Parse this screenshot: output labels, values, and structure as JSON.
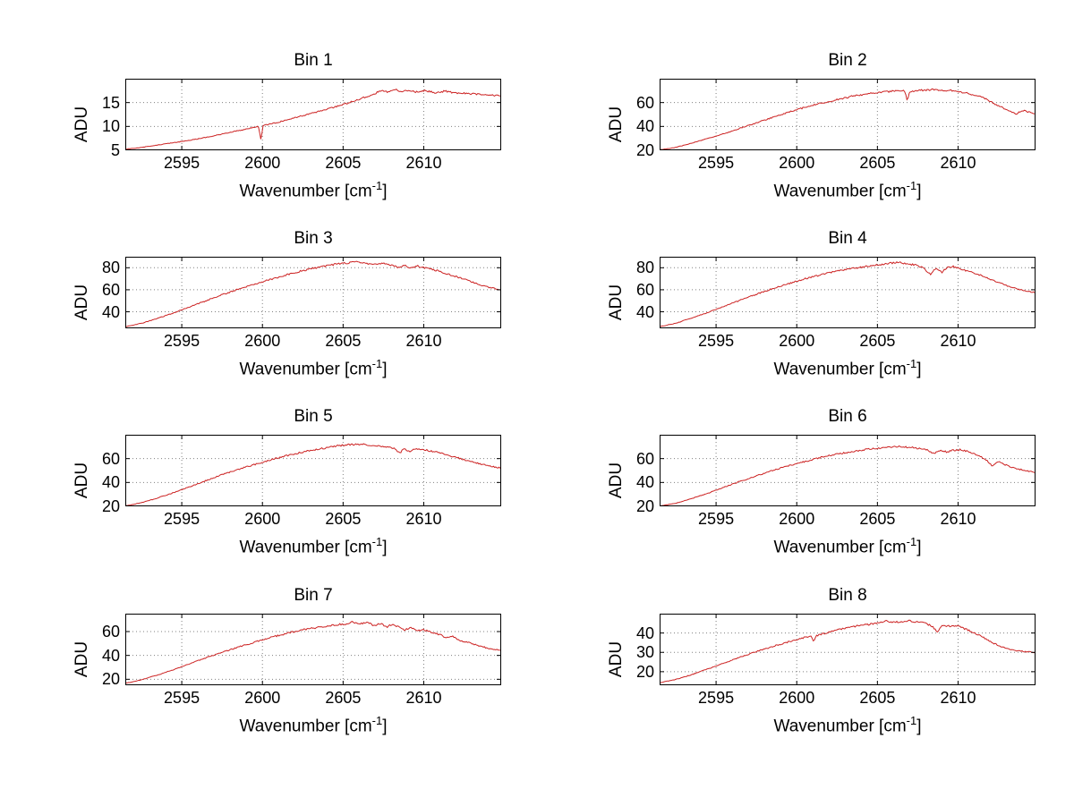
{
  "figure": {
    "background": "#ffffff",
    "line_color": "#cc2222",
    "grid_color": "#808080",
    "axis_color": "#000000",
    "ylabel": "ADU",
    "xlabel": {
      "prefix": "Wavenumber [cm",
      "sup": "-1",
      "suffix": "]"
    }
  },
  "chart_data": [
    {
      "type": "line",
      "title": "Bin 1",
      "xlabel": "Wavenumber [cm^-1]",
      "ylabel": "ADU",
      "xlim": [
        2591.5,
        2614.8
      ],
      "xticks": [
        2595,
        2600,
        2605,
        2610
      ],
      "ylim": [
        5,
        20
      ],
      "yticks": [
        5,
        10,
        15
      ],
      "points": [
        [
          2591.5,
          5.2
        ],
        [
          2592.5,
          5.6
        ],
        [
          2593.5,
          6.1
        ],
        [
          2594.5,
          6.6
        ],
        [
          2595.5,
          7.1
        ],
        [
          2596.5,
          7.7
        ],
        [
          2597.5,
          8.4
        ],
        [
          2598.5,
          9.1
        ],
        [
          2599.3,
          9.7
        ],
        [
          2599.75,
          10.0
        ],
        [
          2599.9,
          7.3
        ],
        [
          2600.05,
          10.2
        ],
        [
          2601,
          10.9
        ],
        [
          2602,
          11.8
        ],
        [
          2603,
          12.7
        ],
        [
          2604,
          13.6
        ],
        [
          2605,
          14.6
        ],
        [
          2606,
          15.7
        ],
        [
          2606.8,
          16.6
        ],
        [
          2607.4,
          17.6
        ],
        [
          2607.8,
          17.2
        ],
        [
          2608.2,
          17.9
        ],
        [
          2608.6,
          17.3
        ],
        [
          2609,
          17.6
        ],
        [
          2609.5,
          17.2
        ],
        [
          2610,
          17.5
        ],
        [
          2610.7,
          17.1
        ],
        [
          2611.3,
          17.4
        ],
        [
          2612,
          17.0
        ],
        [
          2612.7,
          16.9
        ],
        [
          2613.4,
          16.7
        ],
        [
          2614.8,
          16.4
        ]
      ]
    },
    {
      "type": "line",
      "title": "Bin 2",
      "xlabel": "Wavenumber [cm^-1]",
      "ylabel": "ADU",
      "xlim": [
        2591.5,
        2614.8
      ],
      "xticks": [
        2595,
        2600,
        2605,
        2610
      ],
      "ylim": [
        20,
        80
      ],
      "yticks": [
        20,
        40,
        60
      ],
      "points": [
        [
          2591.5,
          20.3
        ],
        [
          2592.5,
          22.5
        ],
        [
          2593.5,
          26
        ],
        [
          2594.5,
          30
        ],
        [
          2595.5,
          34
        ],
        [
          2596.5,
          38.5
        ],
        [
          2597.5,
          43
        ],
        [
          2598.5,
          47.5
        ],
        [
          2599.5,
          52
        ],
        [
          2600.5,
          56
        ],
        [
          2601.5,
          59.5
        ],
        [
          2602.5,
          62.5
        ],
        [
          2603.5,
          65.5
        ],
        [
          2604.5,
          67.5
        ],
        [
          2605.5,
          69
        ],
        [
          2606.3,
          70
        ],
        [
          2606.7,
          69.5
        ],
        [
          2606.85,
          61.5
        ],
        [
          2607,
          69.5
        ],
        [
          2607.5,
          70
        ],
        [
          2608,
          70.5
        ],
        [
          2608.5,
          71
        ],
        [
          2609,
          70
        ],
        [
          2609.5,
          70.5
        ],
        [
          2610,
          69
        ],
        [
          2610.5,
          68
        ],
        [
          2611,
          66.5
        ],
        [
          2611.5,
          64.5
        ],
        [
          2612,
          61
        ],
        [
          2612.4,
          58
        ],
        [
          2612.8,
          55.5
        ],
        [
          2613.2,
          53
        ],
        [
          2613.6,
          50.5
        ],
        [
          2614,
          53.5
        ],
        [
          2614.4,
          52
        ],
        [
          2614.8,
          50
        ]
      ]
    },
    {
      "type": "line",
      "title": "Bin 3",
      "xlabel": "Wavenumber [cm^-1]",
      "ylabel": "ADU",
      "xlim": [
        2591.5,
        2614.8
      ],
      "xticks": [
        2595,
        2600,
        2605,
        2610
      ],
      "ylim": [
        25,
        90
      ],
      "yticks": [
        40,
        60,
        80
      ],
      "points": [
        [
          2591.5,
          26.5
        ],
        [
          2592.5,
          29.5
        ],
        [
          2593.5,
          34
        ],
        [
          2594.5,
          39
        ],
        [
          2595.5,
          44.5
        ],
        [
          2596.5,
          50
        ],
        [
          2597.5,
          55.5
        ],
        [
          2598.5,
          60.5
        ],
        [
          2599.5,
          65
        ],
        [
          2600.5,
          69.5
        ],
        [
          2601.5,
          73.5
        ],
        [
          2602.5,
          77.5
        ],
        [
          2603.5,
          80.5
        ],
        [
          2604.5,
          83
        ],
        [
          2605.3,
          84.5
        ],
        [
          2605.8,
          85.5
        ],
        [
          2606.3,
          84
        ],
        [
          2607,
          83.5
        ],
        [
          2607.5,
          84
        ],
        [
          2608,
          82.5
        ],
        [
          2608.4,
          80
        ],
        [
          2608.8,
          82.5
        ],
        [
          2609.2,
          79.5
        ],
        [
          2609.6,
          81.5
        ],
        [
          2610,
          80
        ],
        [
          2610.5,
          79
        ],
        [
          2611,
          76.5
        ],
        [
          2611.8,
          73
        ],
        [
          2612.6,
          69
        ],
        [
          2613.4,
          65
        ],
        [
          2614.1,
          62
        ],
        [
          2614.8,
          60
        ]
      ]
    },
    {
      "type": "line",
      "title": "Bin 4",
      "xlabel": "Wavenumber [cm^-1]",
      "ylabel": "ADU",
      "xlim": [
        2591.5,
        2614.8
      ],
      "xticks": [
        2595,
        2600,
        2605,
        2610
      ],
      "ylim": [
        25,
        90
      ],
      "yticks": [
        40,
        60,
        80
      ],
      "points": [
        [
          2591.5,
          26.5
        ],
        [
          2592.5,
          29.5
        ],
        [
          2593.5,
          34.5
        ],
        [
          2594.5,
          39.5
        ],
        [
          2595.5,
          45
        ],
        [
          2596.5,
          50.5
        ],
        [
          2597.5,
          56
        ],
        [
          2598.5,
          61
        ],
        [
          2599.5,
          65.5
        ],
        [
          2600.5,
          70
        ],
        [
          2601.5,
          73.5
        ],
        [
          2602.5,
          77
        ],
        [
          2603.5,
          79.5
        ],
        [
          2604.5,
          81.5
        ],
        [
          2605.5,
          83.5
        ],
        [
          2606.2,
          85
        ],
        [
          2606.8,
          84
        ],
        [
          2607.3,
          82.5
        ],
        [
          2607.7,
          81
        ],
        [
          2608,
          78
        ],
        [
          2608.3,
          73.5
        ],
        [
          2608.6,
          79.5
        ],
        [
          2609,
          76
        ],
        [
          2609.3,
          80
        ],
        [
          2609.7,
          81
        ],
        [
          2610.2,
          78.5
        ],
        [
          2610.8,
          76
        ],
        [
          2611.5,
          72.5
        ],
        [
          2612.2,
          68.5
        ],
        [
          2613,
          64
        ],
        [
          2613.8,
          60
        ],
        [
          2614.3,
          58.5
        ],
        [
          2614.8,
          57.5
        ]
      ]
    },
    {
      "type": "line",
      "title": "Bin 5",
      "xlabel": "Wavenumber [cm^-1]",
      "ylabel": "ADU",
      "xlim": [
        2591.5,
        2614.8
      ],
      "xticks": [
        2595,
        2600,
        2605,
        2610
      ],
      "ylim": [
        20,
        80
      ],
      "yticks": [
        20,
        40,
        60
      ],
      "points": [
        [
          2591.5,
          20.3
        ],
        [
          2592.5,
          23
        ],
        [
          2593.5,
          27
        ],
        [
          2594.5,
          31.5
        ],
        [
          2595.5,
          36.5
        ],
        [
          2596.5,
          41.5
        ],
        [
          2597.5,
          46.5
        ],
        [
          2598.5,
          51
        ],
        [
          2599.5,
          55
        ],
        [
          2600.5,
          59
        ],
        [
          2601.5,
          62.5
        ],
        [
          2602.5,
          65.5
        ],
        [
          2603.5,
          68
        ],
        [
          2604.5,
          70.5
        ],
        [
          2605.3,
          71.5
        ],
        [
          2606,
          72
        ],
        [
          2606.7,
          71.5
        ],
        [
          2607.3,
          70.5
        ],
        [
          2607.8,
          69.5
        ],
        [
          2608.2,
          68.5
        ],
        [
          2608.5,
          64.5
        ],
        [
          2608.8,
          68.5
        ],
        [
          2609.1,
          66
        ],
        [
          2609.4,
          68.5
        ],
        [
          2610,
          67.5
        ],
        [
          2610.6,
          66
        ],
        [
          2611.2,
          64
        ],
        [
          2612,
          61
        ],
        [
          2612.8,
          58
        ],
        [
          2613.5,
          55.5
        ],
        [
          2614.2,
          53.5
        ],
        [
          2614.8,
          52
        ]
      ]
    },
    {
      "type": "line",
      "title": "Bin 6",
      "xlabel": "Wavenumber [cm^-1]",
      "ylabel": "ADU",
      "xlim": [
        2591.5,
        2614.8
      ],
      "xticks": [
        2595,
        2600,
        2605,
        2610
      ],
      "ylim": [
        20,
        80
      ],
      "yticks": [
        20,
        40,
        60
      ],
      "points": [
        [
          2591.5,
          20.3
        ],
        [
          2592.5,
          22.5
        ],
        [
          2593.5,
          26.5
        ],
        [
          2594.5,
          31
        ],
        [
          2595.5,
          36
        ],
        [
          2596.5,
          41
        ],
        [
          2597.5,
          45.5
        ],
        [
          2598.5,
          50
        ],
        [
          2599.5,
          54
        ],
        [
          2600.5,
          57.5
        ],
        [
          2601.5,
          61
        ],
        [
          2602.5,
          64
        ],
        [
          2603.5,
          66
        ],
        [
          2604.5,
          68
        ],
        [
          2605.5,
          69.5
        ],
        [
          2606.3,
          70
        ],
        [
          2607,
          69.5
        ],
        [
          2607.6,
          68.5
        ],
        [
          2608.1,
          67.5
        ],
        [
          2608.5,
          64
        ],
        [
          2608.9,
          67
        ],
        [
          2609.3,
          65.5
        ],
        [
          2609.7,
          67
        ],
        [
          2610.2,
          67.5
        ],
        [
          2610.7,
          65.5
        ],
        [
          2611.2,
          63
        ],
        [
          2611.7,
          59.5
        ],
        [
          2612.1,
          54
        ],
        [
          2612.5,
          57.5
        ],
        [
          2612.9,
          55
        ],
        [
          2613.4,
          52.5
        ],
        [
          2614,
          50.5
        ],
        [
          2614.8,
          48.5
        ]
      ]
    },
    {
      "type": "line",
      "title": "Bin 7",
      "xlabel": "Wavenumber [cm^-1]",
      "ylabel": "ADU",
      "xlim": [
        2591.5,
        2614.8
      ],
      "xticks": [
        2595,
        2600,
        2605,
        2610
      ],
      "ylim": [
        15,
        75
      ],
      "yticks": [
        20,
        40,
        60
      ],
      "points": [
        [
          2591.5,
          16.5
        ],
        [
          2592.5,
          19.5
        ],
        [
          2593.5,
          23.5
        ],
        [
          2594.5,
          28
        ],
        [
          2595.5,
          33
        ],
        [
          2596.5,
          38
        ],
        [
          2597.5,
          42.5
        ],
        [
          2598.5,
          47
        ],
        [
          2599.5,
          51
        ],
        [
          2600.5,
          55
        ],
        [
          2601.5,
          58.5
        ],
        [
          2602.5,
          61.5
        ],
        [
          2603.5,
          63.5
        ],
        [
          2604.5,
          65.5
        ],
        [
          2605.2,
          66.5
        ],
        [
          2605.6,
          68
        ],
        [
          2606,
          66.5
        ],
        [
          2606.5,
          68
        ],
        [
          2607,
          64.5
        ],
        [
          2607.3,
          67
        ],
        [
          2607.7,
          63.5
        ],
        [
          2608,
          66
        ],
        [
          2608.4,
          64.5
        ],
        [
          2608.8,
          61.5
        ],
        [
          2609.2,
          63.5
        ],
        [
          2609.6,
          60.5
        ],
        [
          2610,
          61.5
        ],
        [
          2610.5,
          59.5
        ],
        [
          2611,
          57.5
        ],
        [
          2611.4,
          54.5
        ],
        [
          2611.8,
          56
        ],
        [
          2612.2,
          52.5
        ],
        [
          2612.7,
          51
        ],
        [
          2613.2,
          49
        ],
        [
          2613.7,
          47
        ],
        [
          2614.2,
          45.5
        ],
        [
          2614.8,
          44
        ]
      ]
    },
    {
      "type": "line",
      "title": "Bin 8",
      "xlabel": "Wavenumber [cm^-1]",
      "ylabel": "ADU",
      "xlim": [
        2591.5,
        2614.8
      ],
      "xticks": [
        2595,
        2600,
        2605,
        2610
      ],
      "ylim": [
        13,
        50
      ],
      "yticks": [
        20,
        30,
        40
      ],
      "points": [
        [
          2591.5,
          14.3
        ],
        [
          2592.5,
          16
        ],
        [
          2593.5,
          18.5
        ],
        [
          2594.5,
          21.5
        ],
        [
          2595.5,
          24.5
        ],
        [
          2596.5,
          27.5
        ],
        [
          2597.5,
          30.5
        ],
        [
          2598.5,
          33
        ],
        [
          2599.5,
          35.5
        ],
        [
          2600.4,
          37.5
        ],
        [
          2600.9,
          38.5
        ],
        [
          2601.05,
          35.5
        ],
        [
          2601.2,
          38.5
        ],
        [
          2602,
          40.5
        ],
        [
          2603,
          42.5
        ],
        [
          2604,
          44
        ],
        [
          2605,
          45
        ],
        [
          2605.5,
          46.5
        ],
        [
          2606,
          45.5
        ],
        [
          2606.5,
          46
        ],
        [
          2607,
          46.5
        ],
        [
          2607.5,
          45.5
        ],
        [
          2608,
          45
        ],
        [
          2608.4,
          43.5
        ],
        [
          2608.7,
          40.5
        ],
        [
          2609,
          44
        ],
        [
          2609.5,
          43.5
        ],
        [
          2610,
          43.5
        ],
        [
          2610.5,
          42
        ],
        [
          2611,
          40
        ],
        [
          2611.5,
          38
        ],
        [
          2612,
          35.5
        ],
        [
          2612.5,
          33.5
        ],
        [
          2613,
          32
        ],
        [
          2613.5,
          31
        ],
        [
          2614,
          30.5
        ],
        [
          2614.8,
          30
        ]
      ]
    }
  ]
}
